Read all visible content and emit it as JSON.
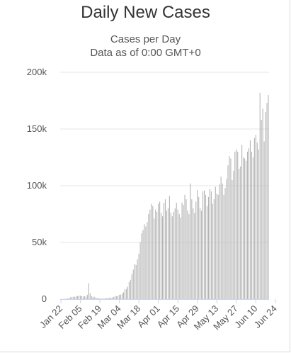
{
  "chart_data": {
    "type": "bar",
    "title": "Daily New Cases",
    "subtitle_1": "Cases per Day",
    "subtitle_2": "Data as of 0:00 GMT+0",
    "xlabel": "",
    "ylabel": "",
    "ylim": [
      0,
      200000
    ],
    "y_ticks": [
      0,
      50000,
      100000,
      150000,
      200000
    ],
    "y_tick_labels": [
      "0",
      "50k",
      "100k",
      "150k",
      "200k"
    ],
    "x_tick_labels": [
      "Jan 22",
      "Feb 05",
      "Feb 19",
      "Mar 04",
      "Mar 18",
      "Apr 01",
      "Apr 15",
      "Apr 29",
      "May 13",
      "May 27",
      "Jun 10",
      "Jun 24"
    ],
    "x_tick_every": 14,
    "grid": true,
    "bar_color": "#b3b3b3",
    "values": [
      100,
      150,
      200,
      300,
      500,
      700,
      800,
      1700,
      2000,
      2200,
      2000,
      2500,
      2800,
      3100,
      3000,
      2600,
      2400,
      2500,
      2200,
      3800,
      14000,
      5000,
      2600,
      2100,
      1900,
      1100,
      900,
      800,
      600,
      500,
      400,
      600,
      700,
      800,
      1000,
      1200,
      1300,
      1500,
      2000,
      2700,
      2500,
      3000,
      3800,
      4000,
      5000,
      6000,
      8500,
      9000,
      11000,
      15000,
      17000,
      22000,
      26000,
      31000,
      30000,
      35000,
      40000,
      50000,
      58000,
      61000,
      66000,
      64000,
      68000,
      75000,
      79000,
      84000,
      82000,
      71000,
      79000,
      77000,
      84000,
      86000,
      76000,
      73000,
      85000,
      88000,
      78000,
      80000,
      91000,
      76000,
      73000,
      77000,
      80000,
      85000,
      79000,
      75000,
      72000,
      85000,
      83000,
      92000,
      88000,
      78000,
      75000,
      102000,
      88000,
      80000,
      76000,
      86000,
      96000,
      90000,
      80000,
      78000,
      95000,
      96000,
      92000,
      82000,
      90000,
      97000,
      95000,
      84000,
      88000,
      99000,
      93000,
      92000,
      101000,
      108000,
      102000,
      92000,
      98000,
      106000,
      118000,
      126000,
      124000,
      105000,
      113000,
      130000,
      132000,
      130000,
      115000,
      117000,
      136000,
      125000,
      124000,
      122000,
      130000,
      133000,
      140000,
      130000,
      125000,
      142000,
      145000,
      138000,
      132000,
      182000,
      158000,
      168000,
      139000,
      165000,
      173000,
      180000
    ]
  }
}
